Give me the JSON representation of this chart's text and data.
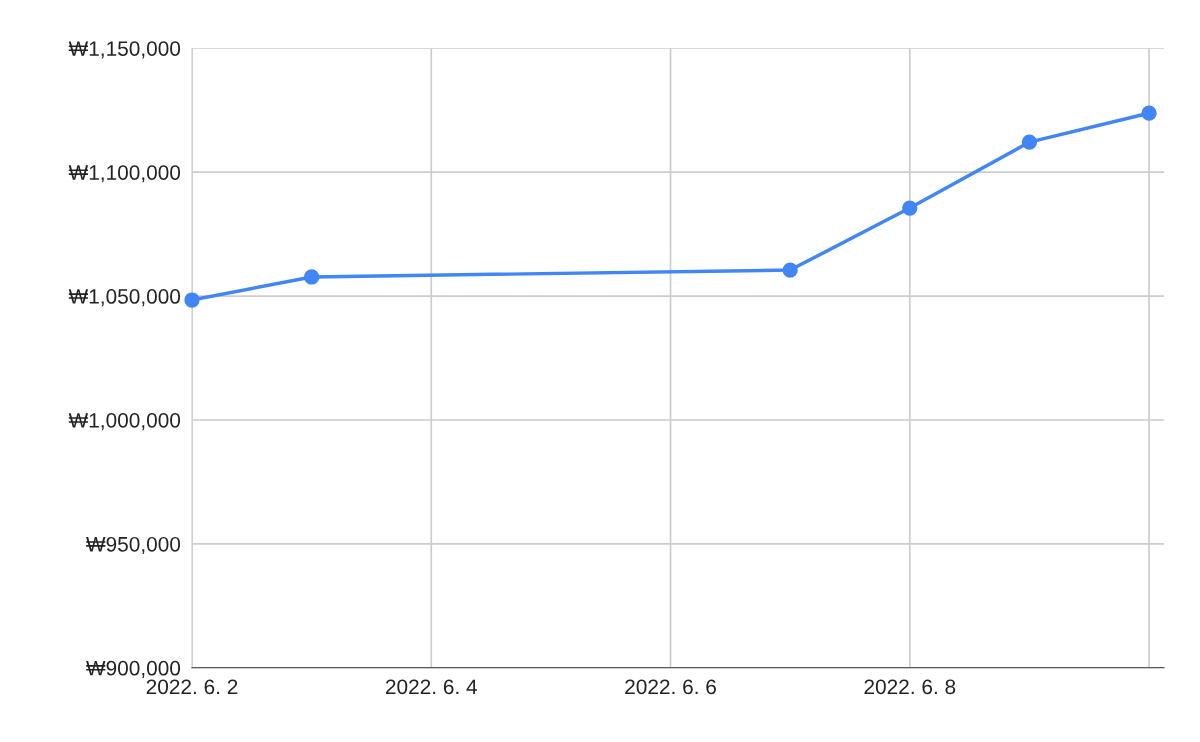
{
  "chart_data": {
    "type": "line",
    "x": [
      "2022-06-02",
      "2022-06-03",
      "2022-06-07",
      "2022-06-08",
      "2022-06-09",
      "2022-06-10"
    ],
    "series": [
      {
        "color": "#4285f4",
        "values": [
          1048400,
          1057700,
          1060500,
          1085500,
          1112100,
          1123800
        ]
      }
    ],
    "xlim": [
      "2022-06-02",
      "2022-06-10T03:00"
    ],
    "xticks": [
      {
        "value": "2022-06-02",
        "label": "2022. 6. 2"
      },
      {
        "value": "2022-06-04",
        "label": "2022. 6. 4"
      },
      {
        "value": "2022-06-06",
        "label": "2022. 6. 6"
      },
      {
        "value": "2022-06-08",
        "label": "2022. 6. 8"
      },
      {
        "value": "2022-06-10",
        "label": null
      }
    ],
    "ylim": [
      900000,
      1150000
    ],
    "yticks": [
      {
        "value": 900000,
        "label": "₩900,000"
      },
      {
        "value": 950000,
        "label": "₩950,000"
      },
      {
        "value": 1000000,
        "label": "₩1,000,000"
      },
      {
        "value": 1050000,
        "label": "₩1,050,000"
      },
      {
        "value": 1100000,
        "label": "₩1,100,000"
      },
      {
        "value": 1150000,
        "label": "₩1,150,000"
      }
    ],
    "grid": true,
    "marker": "circle",
    "line_style": "solid"
  }
}
